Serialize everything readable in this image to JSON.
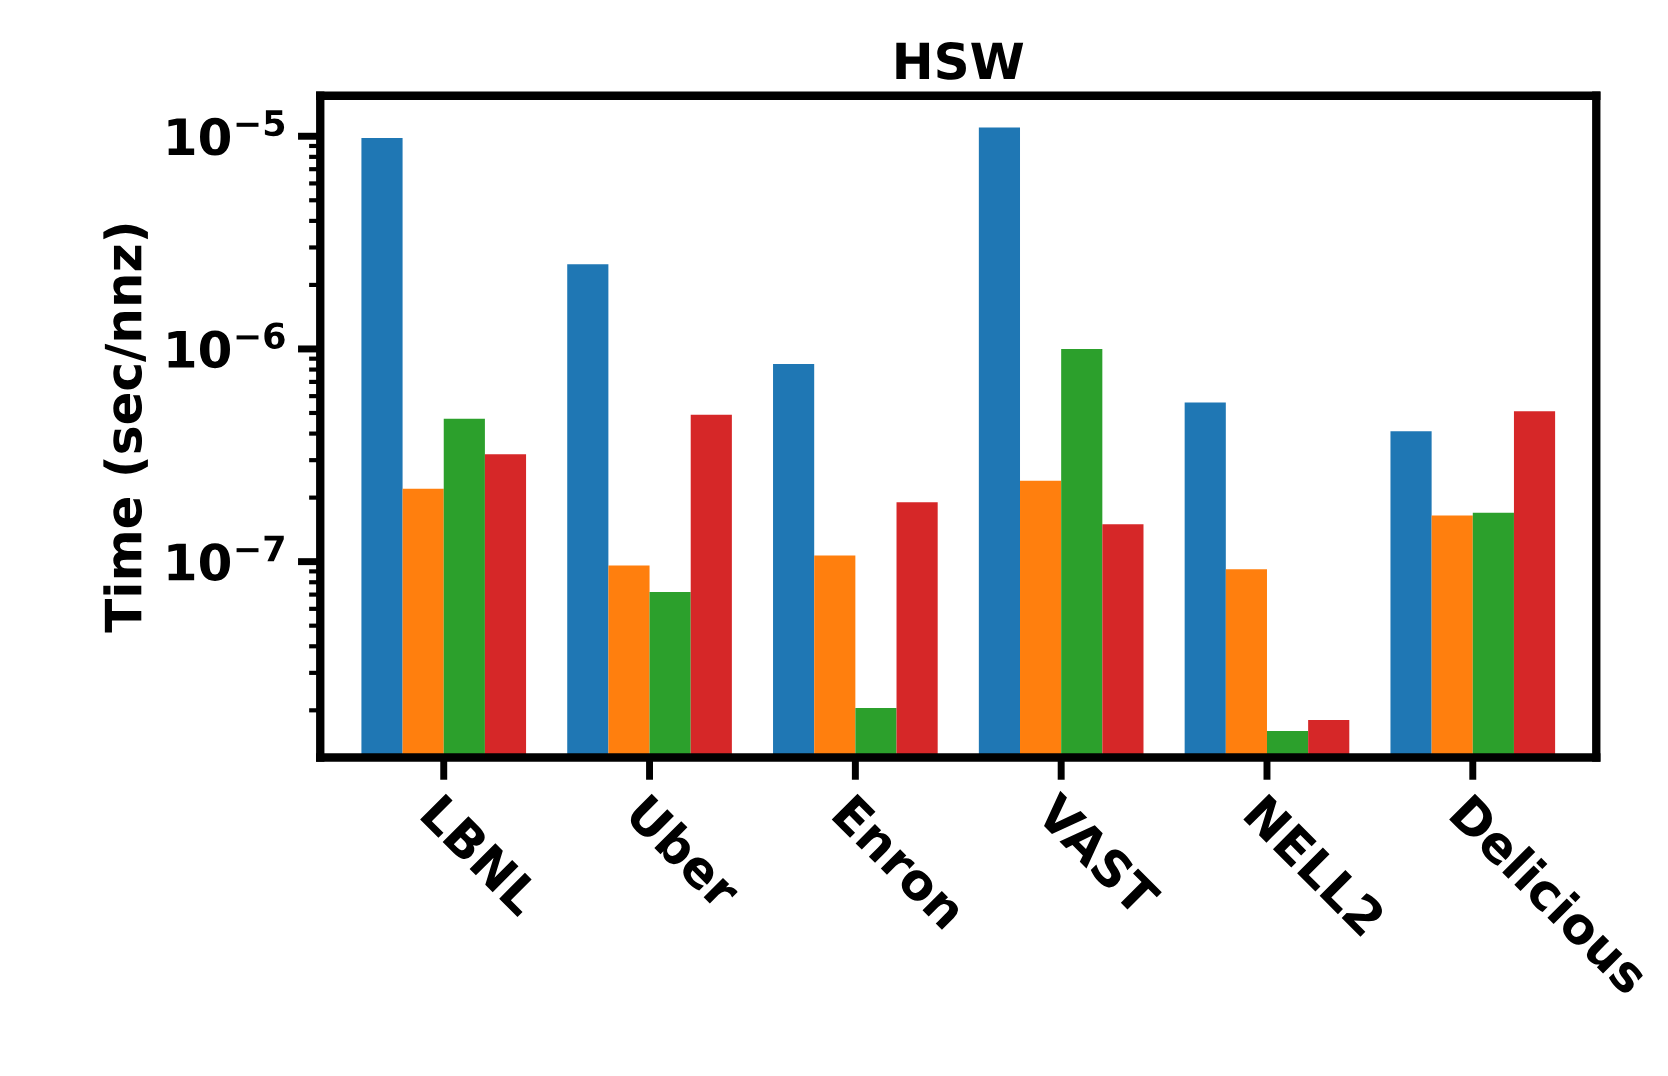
{
  "chart_data": {
    "type": "bar",
    "title": "HSW",
    "ylabel": "Time (sec/nnz)",
    "categories": [
      "LBNL",
      "Uber",
      "Enron",
      "VAST",
      "NELL2",
      "Delicious"
    ],
    "series": [
      {
        "color": "#1f77b4",
        "values": [
          9.8e-06,
          2.5e-06,
          8.5e-07,
          1.1e-05,
          5.6e-07,
          4.1e-07
        ]
      },
      {
        "color": "#ff7f0e",
        "values": [
          2.2e-07,
          9.6e-08,
          1.07e-07,
          2.4e-07,
          9.2e-08,
          1.65e-07
        ]
      },
      {
        "color": "#2ca02c",
        "values": [
          4.7e-07,
          7.2e-08,
          2.05e-08,
          1e-06,
          1.6e-08,
          1.7e-07
        ]
      },
      {
        "color": "#d62728",
        "values": [
          3.2e-07,
          4.9e-07,
          1.9e-07,
          1.5e-07,
          1.8e-08,
          5.1e-07
        ]
      }
    ],
    "log": "y",
    "ylim": [
      1.2e-08,
      1.55e-05
    ],
    "yticks": [
      {
        "value": 1e-07,
        "label": "10$^{−7}$"
      },
      {
        "value": 1e-06,
        "label": "10$^{−6}$"
      },
      {
        "value": 1e-05,
        "label": "10$^{−5}$"
      }
    ],
    "grid": false,
    "legend": false
  }
}
